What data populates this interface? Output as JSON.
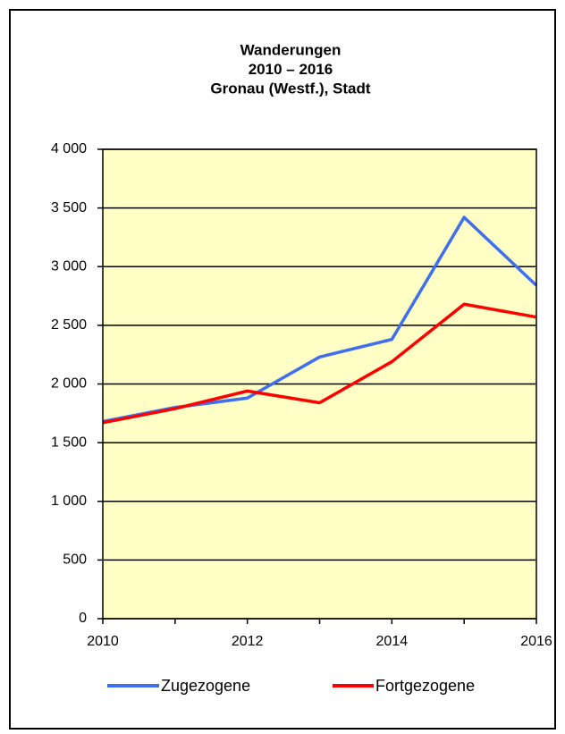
{
  "chart_data": {
    "type": "line",
    "title": [
      "Wanderungen",
      "2010 – 2016",
      "Gronau (Westf.), Stadt"
    ],
    "x": [
      2010,
      2011,
      2012,
      2013,
      2014,
      2015,
      2016
    ],
    "series": [
      {
        "name": "Zugezogene",
        "color": "#3f6fee",
        "values": [
          1680,
          1800,
          1880,
          2230,
          2380,
          3420,
          2840
        ]
      },
      {
        "name": "Fortgezogene",
        "color": "#ff0000",
        "values": [
          1670,
          1790,
          1940,
          1840,
          2190,
          2680,
          2570
        ]
      }
    ],
    "xlim": [
      2010,
      2016
    ],
    "xticks": [
      2010,
      2012,
      2014,
      2016
    ],
    "ylim": [
      0,
      4000
    ],
    "yticks": [
      0,
      500,
      {
        "value": 1000,
        "label": "1 000"
      },
      {
        "value": 1500,
        "label": "1 500"
      },
      {
        "value": 2000,
        "label": "2 000"
      },
      {
        "value": 2500,
        "label": "2 500"
      },
      {
        "value": 3000,
        "label": "3 000"
      },
      {
        "value": 3500,
        "label": "3 500"
      },
      {
        "value": 4000,
        "label": "4 000"
      }
    ],
    "grid": true,
    "legend": "bottom",
    "background": "#ffffc6"
  }
}
